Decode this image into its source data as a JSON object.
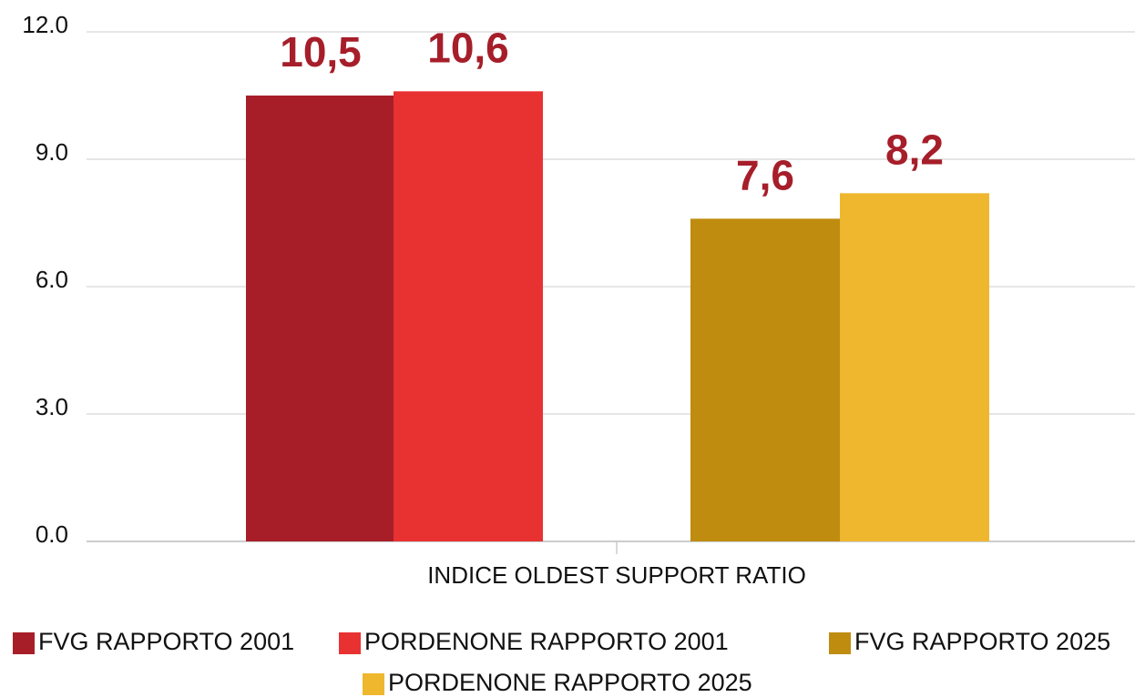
{
  "chart_data": {
    "type": "bar",
    "categories": [
      "INDICE OLDEST SUPPORT RATIO"
    ],
    "series": [
      {
        "name": "FVG RAPPORTO 2001",
        "color": "#a81e28",
        "values": [
          10.5
        ],
        "value_labels": [
          "10,5"
        ]
      },
      {
        "name": "PORDENONE RAPPORTO 2001",
        "color": "#e83232",
        "values": [
          10.6
        ],
        "value_labels": [
          "10,6"
        ]
      },
      {
        "name": "FVG RAPPORTO 2025",
        "color": "#bf8c10",
        "values": [
          7.6
        ],
        "value_labels": [
          "7,6"
        ]
      },
      {
        "name": "PORDENONE RAPPORTO 2025",
        "color": "#eeb72e",
        "values": [
          8.2
        ],
        "value_labels": [
          "8,2"
        ]
      }
    ],
    "value_label_color": "#a61e2a",
    "ylim": [
      0,
      12
    ],
    "yticks": [
      {
        "value": 0,
        "label": "0.0"
      },
      {
        "value": 3,
        "label": "3.0"
      },
      {
        "value": 6,
        "label": "6.0"
      },
      {
        "value": 9,
        "label": "9.0"
      },
      {
        "value": 12,
        "label": "12.0"
      }
    ],
    "grid": true
  }
}
